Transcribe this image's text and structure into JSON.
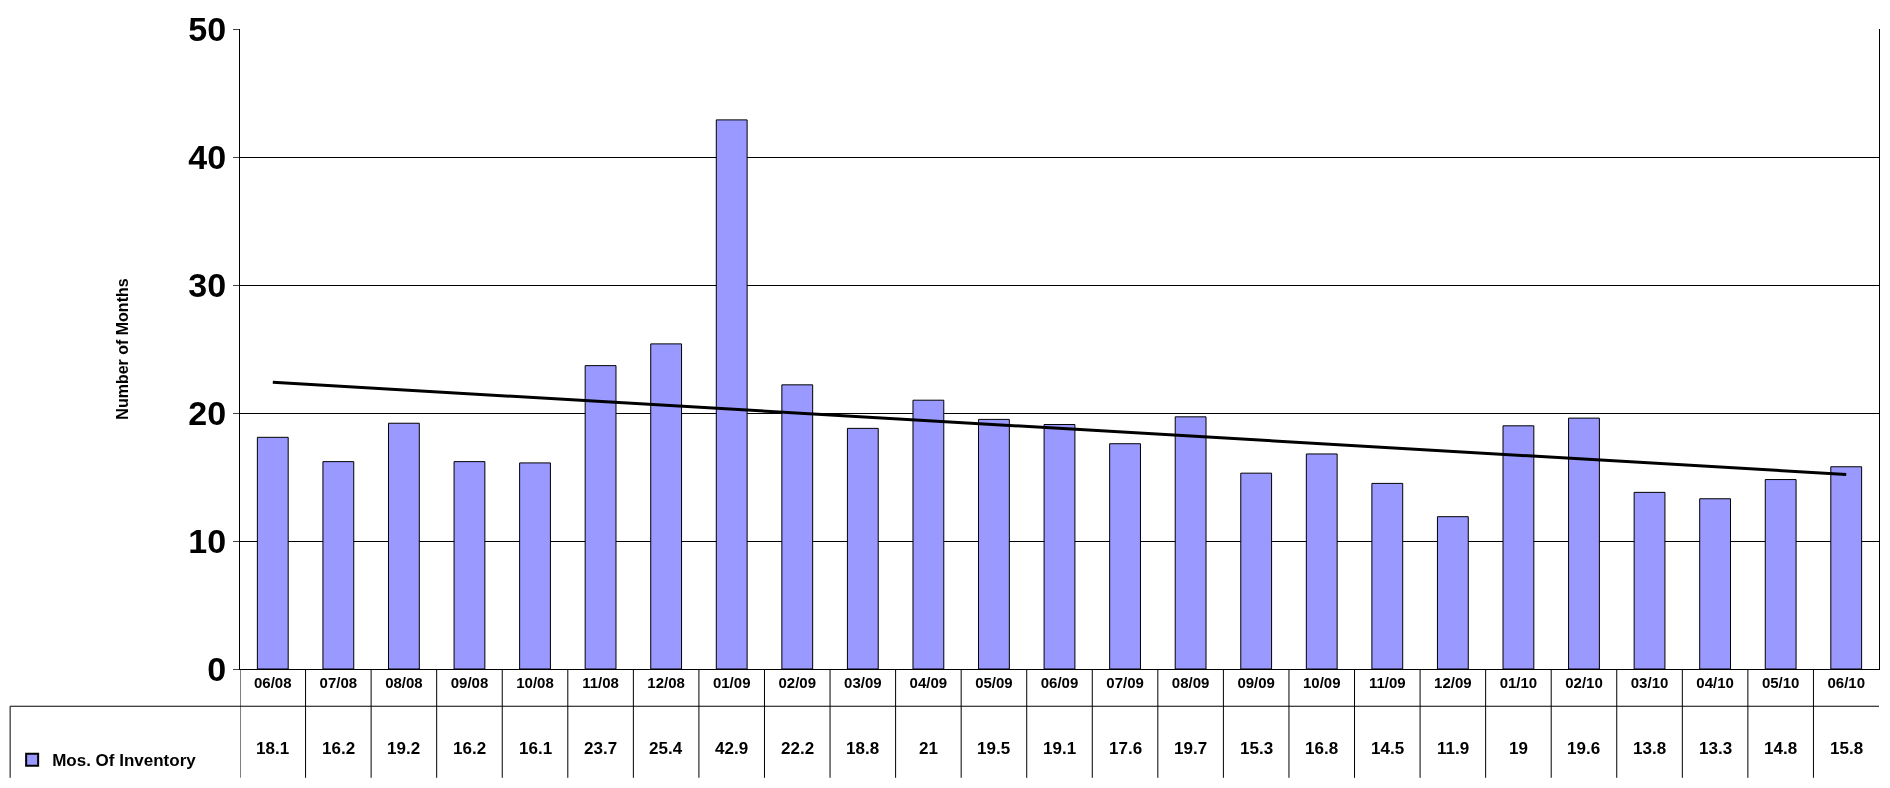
{
  "chart_data": {
    "type": "bar",
    "ylabel": "Number of Months",
    "categories": [
      "06/08",
      "07/08",
      "08/08",
      "09/08",
      "10/08",
      "11/08",
      "12/08",
      "01/09",
      "02/09",
      "03/09",
      "04/09",
      "05/09",
      "06/09",
      "07/09",
      "08/09",
      "09/09",
      "10/09",
      "11/09",
      "12/09",
      "01/10",
      "02/10",
      "03/10",
      "04/10",
      "05/10",
      "06/10"
    ],
    "series": [
      {
        "name": "Mos. Of Inventory",
        "color": "#9999ff",
        "values": [
          18.1,
          16.2,
          19.2,
          16.2,
          16.1,
          23.7,
          25.4,
          42.9,
          22.2,
          18.8,
          21,
          19.5,
          19.1,
          17.6,
          19.7,
          15.3,
          16.8,
          14.5,
          11.9,
          19,
          19.6,
          13.8,
          13.3,
          14.8,
          15.8
        ],
        "value_labels": [
          "18.1",
          "16.2",
          "19.2",
          "16.2",
          "16.1",
          "23.7",
          "25.4",
          "42.9",
          "22.2",
          "18.8",
          "21",
          "19.5",
          "19.1",
          "17.6",
          "19.7",
          "15.3",
          "16.8",
          "14.5",
          "11.9",
          "19",
          "19.6",
          "13.8",
          "13.3",
          "14.8",
          "15.8"
        ]
      },
      {
        "type": "line",
        "color": "#000000",
        "x": [
          "06/08",
          "06/10"
        ],
        "values": [
          22.4,
          15.2
        ]
      }
    ],
    "ylim": [
      0,
      50
    ],
    "yticks": [
      0,
      10,
      20,
      30,
      40,
      50
    ],
    "grid": "y",
    "legend": "bottom left",
    "marker": "none"
  }
}
